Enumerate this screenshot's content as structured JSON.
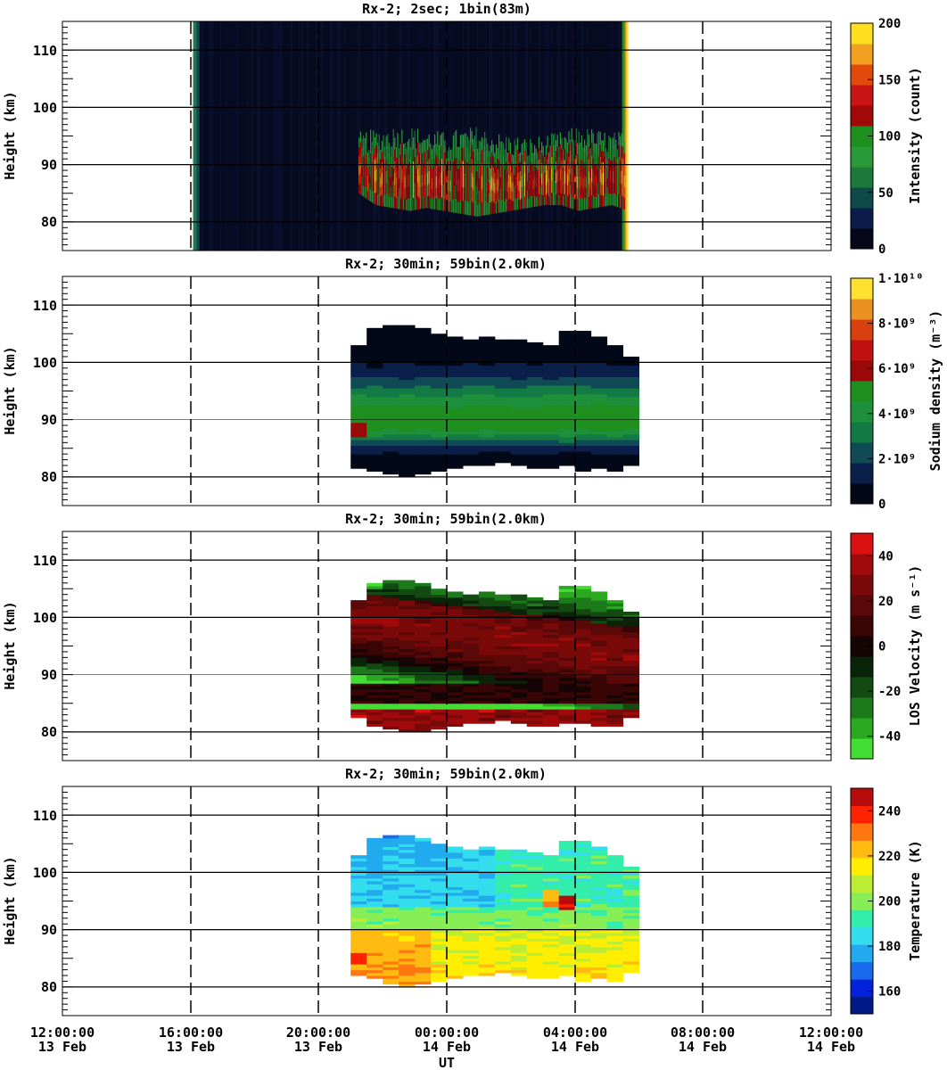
{
  "chart_data": [
    {
      "type": "heatmap",
      "title": "Rx-2;  2sec; 1bin(83m)",
      "ylabel": "Height (km)",
      "ylim": [
        75,
        115
      ],
      "yticks": [
        "80",
        "90",
        "100",
        "110"
      ],
      "colorbar": {
        "label": "Intensity (count)",
        "range": [
          0,
          200
        ],
        "ticks": [
          "0",
          "50",
          "100",
          "150",
          "200"
        ],
        "colors": [
          "#050818",
          "#0c1c4a",
          "#0f4a4a",
          "#1b7a3a",
          "#2a9a38",
          "#1f8f1f",
          "#a30808",
          "#c81414",
          "#e04a0a",
          "#f2a020",
          "#ffe020"
        ]
      },
      "data_start": "13 Feb 16:05",
      "data_end": "14 Feb 05:40",
      "layer": {
        "start": "13 Feb 21:15",
        "end": "14 Feb 05:40",
        "bottom_km": [
          85,
          83,
          82.5,
          82,
          82.5,
          82,
          81.5,
          81,
          81.5,
          82,
          82.5,
          83,
          83,
          82,
          82.5,
          83,
          82
        ],
        "top_km": [
          93,
          93.5,
          94,
          94,
          93.5,
          93,
          93.5,
          94,
          93,
          92.5,
          92,
          92.5,
          93,
          94,
          93.5,
          93,
          93
        ]
      }
    },
    {
      "type": "heatmap",
      "title": "Rx-2; 30min; 59bin(2.0km)",
      "ylabel": "Height (km)",
      "ylim": [
        75,
        115
      ],
      "yticks": [
        "80",
        "90",
        "100",
        "110"
      ],
      "colorbar": {
        "label": "Sodium density (m⁻³)",
        "range": [
          0,
          10000000000
        ],
        "ticks": [
          "0",
          "2·10⁹",
          "4·10⁹",
          "6·10⁹",
          "8·10⁹",
          "1·10¹⁰"
        ],
        "colors": [
          "#030818",
          "#0a1f4a",
          "#0f4a55",
          "#137a45",
          "#1e8f3a",
          "#1f8f1f",
          "#9a0808",
          "#c01010",
          "#d84010",
          "#ea9020",
          "#ffe030"
        ]
      },
      "time_start": "13 Feb 21:00",
      "time_step_min": 30,
      "bottom_km": [
        81.5,
        81,
        80.5,
        80,
        80.5,
        81,
        81.5,
        82,
        82,
        82.5,
        82,
        81.5,
        81.5,
        82,
        81,
        81.5,
        81,
        82
      ],
      "top_km": [
        103,
        106,
        106.5,
        106.5,
        106,
        105,
        104.5,
        104,
        104.5,
        104,
        104,
        103.5,
        103,
        105.5,
        105.5,
        104.5,
        103,
        101
      ],
      "peak_km": 89.5
    },
    {
      "type": "heatmap",
      "title": "Rx-2; 30min; 59bin(2.0km)",
      "ylabel": "Height (km)",
      "ylim": [
        75,
        115
      ],
      "yticks": [
        "80",
        "90",
        "100",
        "110"
      ],
      "colorbar": {
        "label": "LOS Velocity (m s⁻¹)",
        "range": [
          -50,
          50
        ],
        "ticks": [
          "-40",
          "-20",
          "0",
          "20",
          "40"
        ],
        "colors": [
          "#44dd33",
          "#2aa820",
          "#1c7a1a",
          "#124a12",
          "#0a240a",
          "#150505",
          "#3a0505",
          "#5a0808",
          "#7a0a0a",
          "#a00a0a",
          "#dd1010"
        ]
      },
      "time_start": "13 Feb 21:00",
      "time_step_min": 30,
      "bottom_km": [
        82.5,
        81,
        80.5,
        80,
        80,
        80.5,
        81,
        81.5,
        81.5,
        82,
        81.5,
        81,
        81,
        81.5,
        81.5,
        81,
        81,
        82.5
      ],
      "top_km": [
        103,
        106,
        106.5,
        106.5,
        106,
        105,
        104.5,
        104,
        104.5,
        104,
        104,
        103.5,
        103,
        105.5,
        105.5,
        104.5,
        103,
        101
      ]
    },
    {
      "type": "heatmap",
      "title": "Rx-2; 30min; 59bin(2.0km)",
      "ylabel": "Height (km)",
      "ylim": [
        75,
        115
      ],
      "yticks": [
        "80",
        "90",
        "100",
        "110"
      ],
      "colorbar": {
        "label": "Temperature (K)",
        "range": [
          150,
          250
        ],
        "ticks": [
          "160",
          "180",
          "200",
          "220",
          "240"
        ],
        "colors": [
          "#001a8a",
          "#0022dd",
          "#1a6aee",
          "#22aaee",
          "#33ddee",
          "#33eeaa",
          "#88ee55",
          "#bbee33",
          "#ffee00",
          "#ffbb11",
          "#ff7711",
          "#ff2200",
          "#b80c0c"
        ]
      },
      "time_start": "13 Feb 21:00",
      "time_step_min": 30,
      "bottom_km": [
        82,
        81.5,
        80.5,
        80,
        80.5,
        81,
        81.5,
        82,
        82,
        82.5,
        82,
        81.5,
        81.5,
        82,
        81,
        81.5,
        81,
        82.5
      ],
      "top_km": [
        103,
        106,
        106.5,
        106.5,
        106,
        105,
        104.5,
        104,
        104.5,
        104,
        104,
        103.5,
        103,
        105.5,
        105.5,
        104.5,
        103,
        101
      ]
    }
  ],
  "xaxis": {
    "label": "UT",
    "range": [
      "13 Feb 12:00",
      "14 Feb 12:00"
    ],
    "ticks": [
      {
        "time": "12:00:00",
        "date": "13 Feb"
      },
      {
        "time": "16:00:00",
        "date": "13 Feb"
      },
      {
        "time": "20:00:00",
        "date": "13 Feb"
      },
      {
        "time": "00:00:00",
        "date": "14 Feb"
      },
      {
        "time": "04:00:00",
        "date": "14 Feb"
      },
      {
        "time": "08:00:00",
        "date": "14 Feb"
      },
      {
        "time": "12:00:00",
        "date": "14 Feb"
      }
    ]
  }
}
